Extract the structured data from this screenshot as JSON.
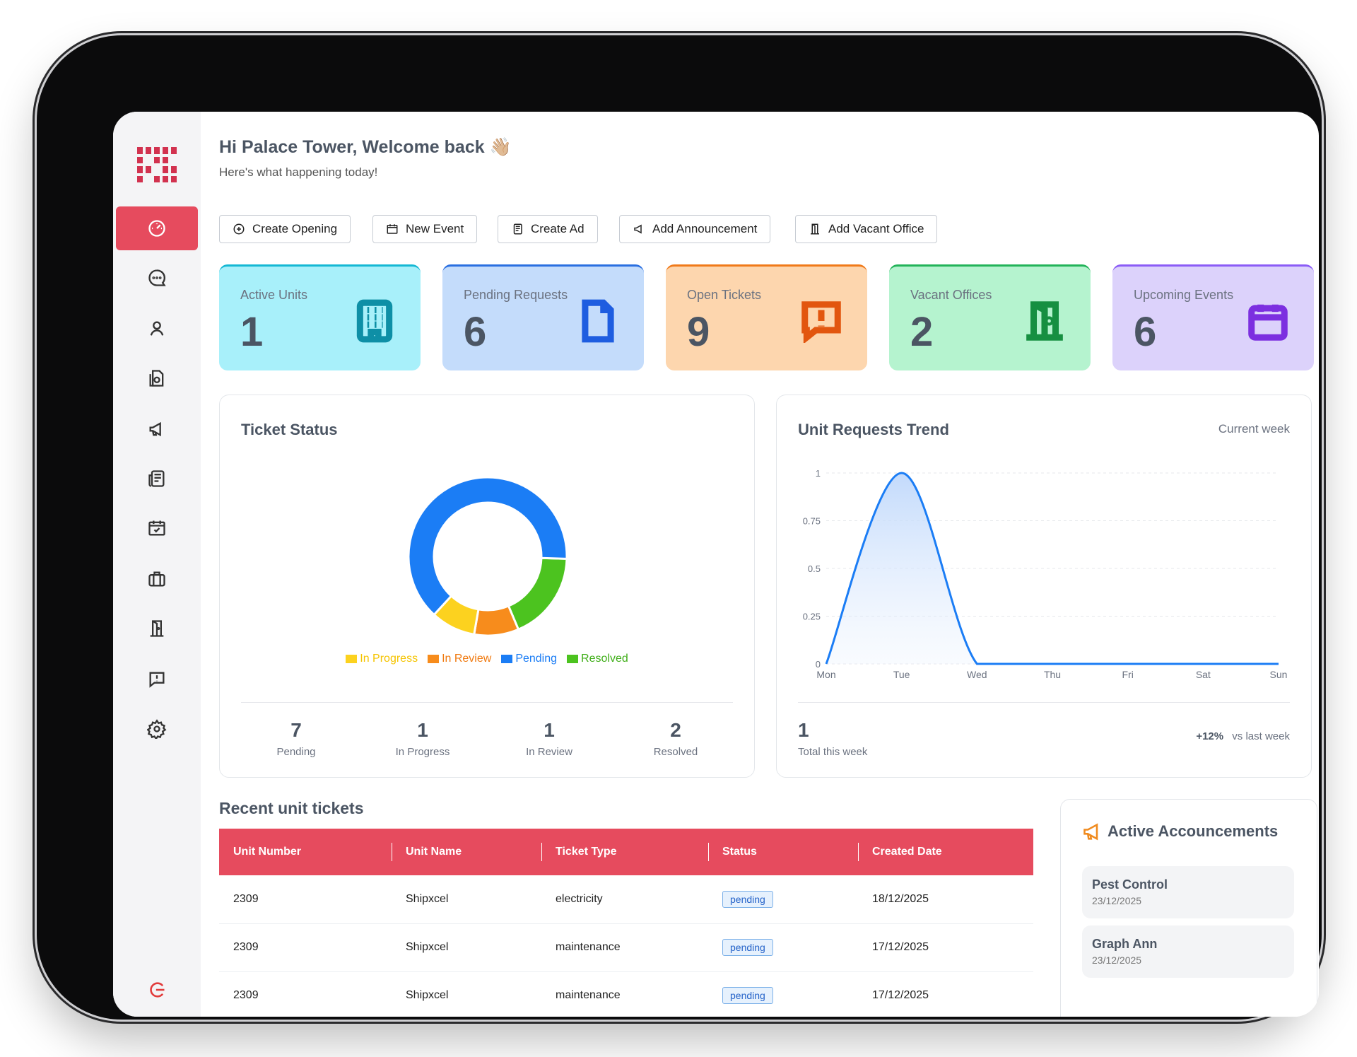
{
  "header": {
    "greeting": "Hi Palace Tower, Welcome back 👋🏼",
    "subtitle": "Here's what happening today!"
  },
  "quick_actions": [
    "Create Opening",
    "New Event",
    "Create Ad",
    "Add Announcement",
    "Add Vacant Office"
  ],
  "cards": [
    {
      "label": "Active Units",
      "value": "1",
      "icon": "building-icon"
    },
    {
      "label": "Pending Requests",
      "value": "6",
      "icon": "document-icon"
    },
    {
      "label": "Open Tickets",
      "value": "9",
      "icon": "alert-message-icon"
    },
    {
      "label": "Vacant Offices",
      "value": "2",
      "icon": "door-icon"
    },
    {
      "label": "Upcoming Events",
      "value": "6",
      "icon": "calendar-icon"
    }
  ],
  "ticket_status": {
    "title": "Ticket Status",
    "legend": [
      "In Progress",
      "In Review",
      "Pending",
      "Resolved"
    ],
    "stats": [
      {
        "value": "7",
        "label": "Pending"
      },
      {
        "value": "1",
        "label": "In Progress"
      },
      {
        "value": "1",
        "label": "In Review"
      },
      {
        "value": "2",
        "label": "Resolved"
      }
    ],
    "colors": {
      "in_progress": "#fcd21f",
      "in_review": "#f78c1c",
      "pending": "#1b7df5",
      "resolved": "#4cc31f"
    }
  },
  "trend": {
    "title": "Unit Requests Trend",
    "period": "Current week",
    "total": "1",
    "total_label": "Total this week",
    "change": "+12%",
    "change_label": "vs last week"
  },
  "chart_data": [
    {
      "type": "pie",
      "title": "Ticket Status",
      "categories": [
        "Pending",
        "In Progress",
        "In Review",
        "Resolved"
      ],
      "values": [
        7,
        1,
        1,
        2
      ]
    },
    {
      "type": "area",
      "title": "Unit Requests Trend",
      "x": [
        "Mon",
        "Tue",
        "Wed",
        "Thu",
        "Fri",
        "Sat",
        "Sun"
      ],
      "values": [
        0,
        1,
        0,
        0,
        0,
        0,
        0
      ],
      "ylim": [
        0,
        1
      ],
      "yticks": [
        "0",
        "0.25",
        "0.5",
        "0.75",
        "1"
      ]
    }
  ],
  "tickets": {
    "title": "Recent unit tickets",
    "columns": [
      "Unit Number",
      "Unit Name",
      "Ticket Type",
      "Status",
      "Created Date"
    ],
    "rows": [
      [
        "2309",
        "Shipxcel",
        "electricity",
        "pending",
        "18/12/2025"
      ],
      [
        "2309",
        "Shipxcel",
        "maintenance",
        "pending",
        "17/12/2025"
      ],
      [
        "2309",
        "Shipxcel",
        "maintenance",
        "pending",
        "17/12/2025"
      ]
    ]
  },
  "announcements": {
    "title": "Active Accouncements",
    "items": [
      {
        "title": "Pest Control",
        "date": "23/12/2025"
      },
      {
        "title": "Graph Ann",
        "date": "23/12/2025"
      }
    ]
  },
  "sidebar_icons": [
    "dashboard-icon",
    "chat-icon",
    "user-icon",
    "documents-icon",
    "megaphone-icon",
    "news-icon",
    "calendar-check-icon",
    "briefcase-icon",
    "door-icon",
    "feedback-icon",
    "gear-icon",
    "logout-icon"
  ]
}
